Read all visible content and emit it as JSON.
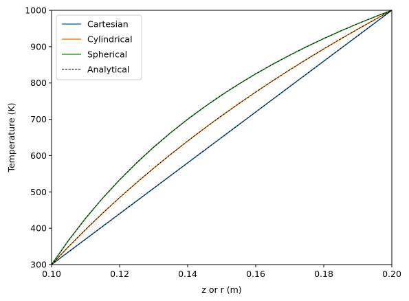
{
  "chart_data": {
    "type": "line",
    "title": "",
    "xlabel": "z or r (m)",
    "ylabel": "Temperature (K)",
    "xlim": [
      0.1,
      0.2
    ],
    "ylim": [
      300,
      1000
    ],
    "x_ticks": [
      "0.10",
      "0.12",
      "0.14",
      "0.16",
      "0.18",
      "0.20"
    ],
    "y_ticks": [
      "300",
      "400",
      "500",
      "600",
      "700",
      "800",
      "900",
      "1000"
    ],
    "legend_position": "upper-left",
    "grid": false,
    "x": [
      0.1,
      0.105,
      0.11,
      0.115,
      0.12,
      0.125,
      0.13,
      0.135,
      0.14,
      0.145,
      0.15,
      0.155,
      0.16,
      0.165,
      0.17,
      0.175,
      0.18,
      0.185,
      0.19,
      0.195,
      0.2
    ],
    "series": [
      {
        "name": "Cartesian",
        "color": "#1f77b4",
        "style": "solid",
        "values": [
          300,
          335,
          370,
          405,
          440,
          475,
          510,
          545,
          580,
          615,
          650,
          685,
          720,
          755,
          790,
          825,
          860,
          895,
          930,
          965,
          1000
        ]
      },
      {
        "name": "Cylindrical",
        "color": "#ff7f0e",
        "style": "solid",
        "values": [
          300,
          349.3,
          396.3,
          441.3,
          484.3,
          525.6,
          565.2,
          603.3,
          640.0,
          675.5,
          709.7,
          742.8,
          774.9,
          806.0,
          836.1,
          865.3,
          893.7,
          921.3,
          948.2,
          974.4,
          1000
        ]
      },
      {
        "name": "Spherical",
        "color": "#2ca02c",
        "style": "solid",
        "values": [
          300,
          366.7,
          427.3,
          482.6,
          533.3,
          580.0,
          623.1,
          663.0,
          700.0,
          734.5,
          766.7,
          796.8,
          825.0,
          851.5,
          876.5,
          900.0,
          922.2,
          943.2,
          963.2,
          982.1,
          1000
        ]
      },
      {
        "name": "Analytical",
        "color": "#000000",
        "style": "dashed",
        "note_curves": "drawn over each of the three profiles",
        "curves": [
          [
            300,
            335,
            370,
            405,
            440,
            475,
            510,
            545,
            580,
            615,
            650,
            685,
            720,
            755,
            790,
            825,
            860,
            895,
            930,
            965,
            1000
          ],
          [
            300,
            349.3,
            396.3,
            441.3,
            484.3,
            525.6,
            565.2,
            603.3,
            640.0,
            675.5,
            709.7,
            742.8,
            774.9,
            806.0,
            836.1,
            865.3,
            893.7,
            921.3,
            948.2,
            974.4,
            1000
          ],
          [
            300,
            366.7,
            427.3,
            482.6,
            533.3,
            580.0,
            623.1,
            663.0,
            700.0,
            734.5,
            766.7,
            796.8,
            825.0,
            851.5,
            876.5,
            900.0,
            922.2,
            943.2,
            963.2,
            982.1,
            1000
          ]
        ]
      }
    ]
  }
}
